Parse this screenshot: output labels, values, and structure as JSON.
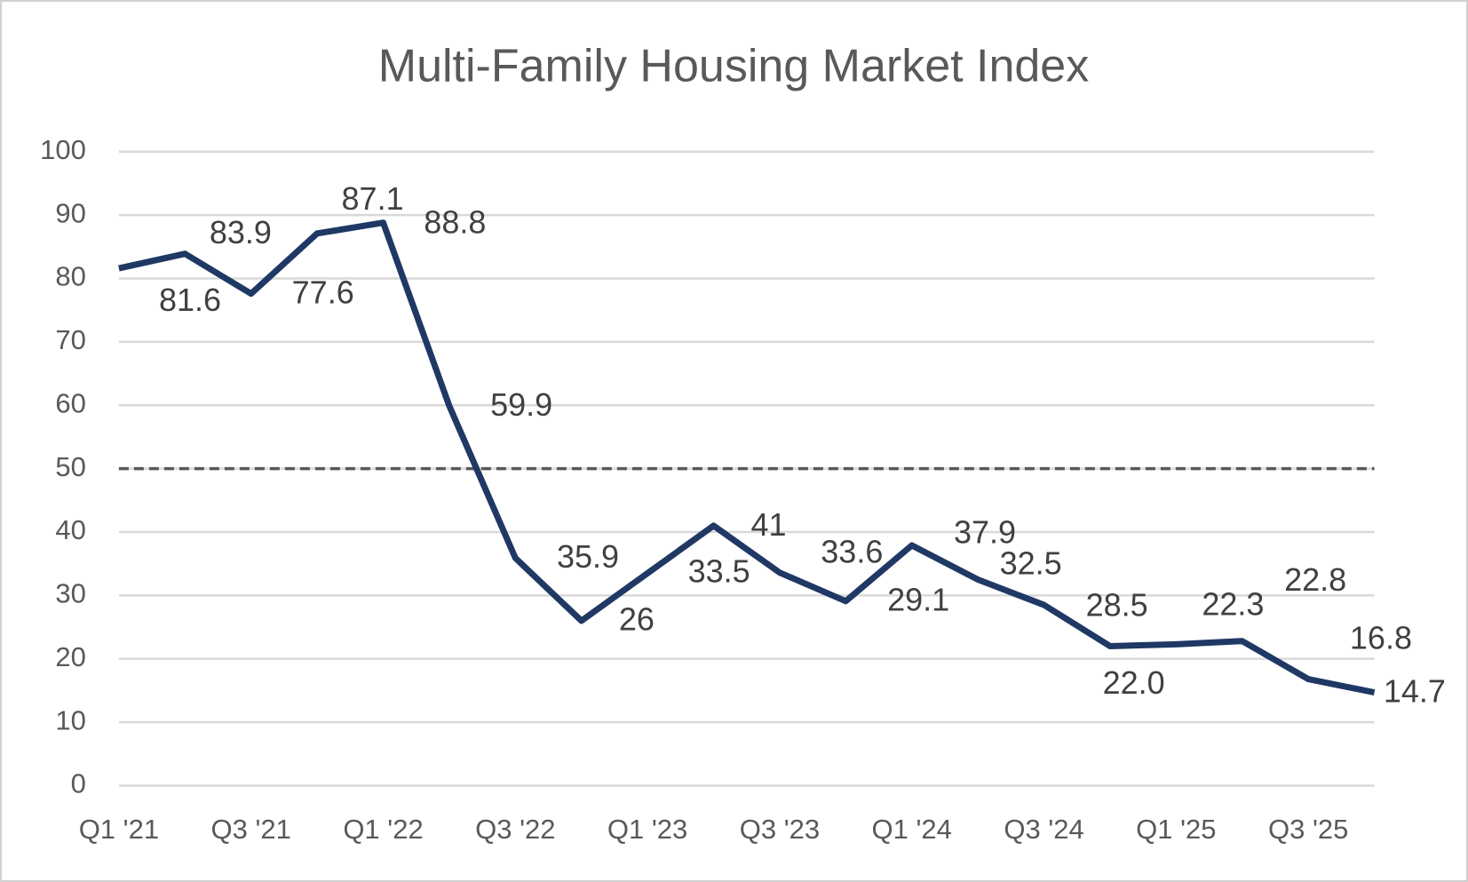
{
  "chart_data": {
    "type": "line",
    "title": "Multi-Family Housing Market Index",
    "categories": [
      "Q1 '21",
      null,
      "Q3 '21",
      null,
      "Q1 '22",
      null,
      "Q3 '22",
      null,
      "Q1 '23",
      null,
      "Q3 '23",
      null,
      "Q1 '24",
      null,
      "Q3 '24",
      null,
      "Q1 '25",
      null,
      "Q3 '25",
      null
    ],
    "series": [
      {
        "name": "Multi-Family Housing Market Index",
        "color": "#1f3864",
        "values": [
          81.6,
          83.9,
          77.6,
          87.1,
          88.8,
          59.9,
          35.9,
          26,
          33.5,
          41,
          33.6,
          29.1,
          37.9,
          32.5,
          28.5,
          22.0,
          22.3,
          22.8,
          16.8,
          14.7
        ],
        "value_labels": [
          "81.6",
          "83.9",
          "77.6",
          "87.1",
          "88.8",
          "59.9",
          "35.9",
          "26",
          "33.5",
          "41",
          "33.6",
          "29.1",
          "37.9",
          "32.5",
          "28.5",
          "22.0",
          "22.3",
          "22.8",
          "16.8",
          "14.7"
        ]
      }
    ],
    "ylim": [
      0,
      100
    ],
    "yticks": [
      0,
      10,
      20,
      30,
      40,
      50,
      60,
      70,
      80,
      90,
      100
    ],
    "grid": true,
    "reference_line": 50
  }
}
